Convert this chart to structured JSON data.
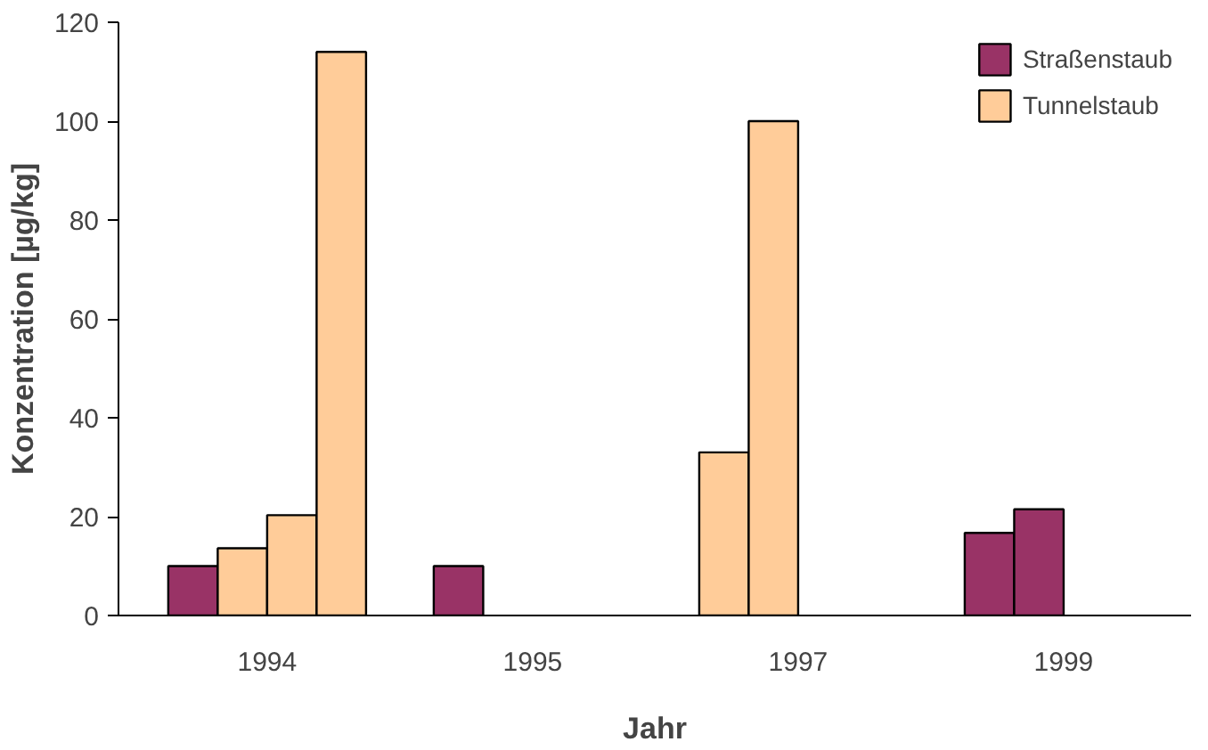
{
  "chart_data": {
    "type": "bar",
    "xlabel": "Jahr",
    "ylabel": "Konzentration [µg/kg]",
    "categories": [
      "1994",
      "1995",
      "1997",
      "1999"
    ],
    "ylim": [
      0,
      120
    ],
    "yticks": [
      0,
      20,
      40,
      60,
      80,
      100,
      120
    ],
    "series": [
      {
        "colors": [
          "#993366",
          "#993366",
          "#ffcc99",
          "#993366"
        ],
        "values": [
          10,
          10,
          33,
          16.7
        ]
      },
      {
        "colors": [
          "#ffcc99",
          null,
          "#ffcc99",
          "#993366"
        ],
        "values": [
          13.6,
          null,
          100,
          21.5
        ]
      },
      {
        "colors": [
          "#ffcc99",
          null,
          null,
          null
        ],
        "values": [
          20.3,
          null,
          null,
          null
        ]
      },
      {
        "colors": [
          "#ffcc99",
          null,
          null,
          null
        ],
        "values": [
          114,
          null,
          null,
          null
        ]
      },
      {
        "name": "Straßenstaub",
        "color": "#993366",
        "values": [
          null,
          null,
          null,
          null
        ]
      },
      {
        "name": "Tunnelstaub",
        "color": "#ffcc99",
        "values": [
          null,
          null,
          null,
          null
        ]
      }
    ],
    "grid": false,
    "legend": "top right"
  }
}
